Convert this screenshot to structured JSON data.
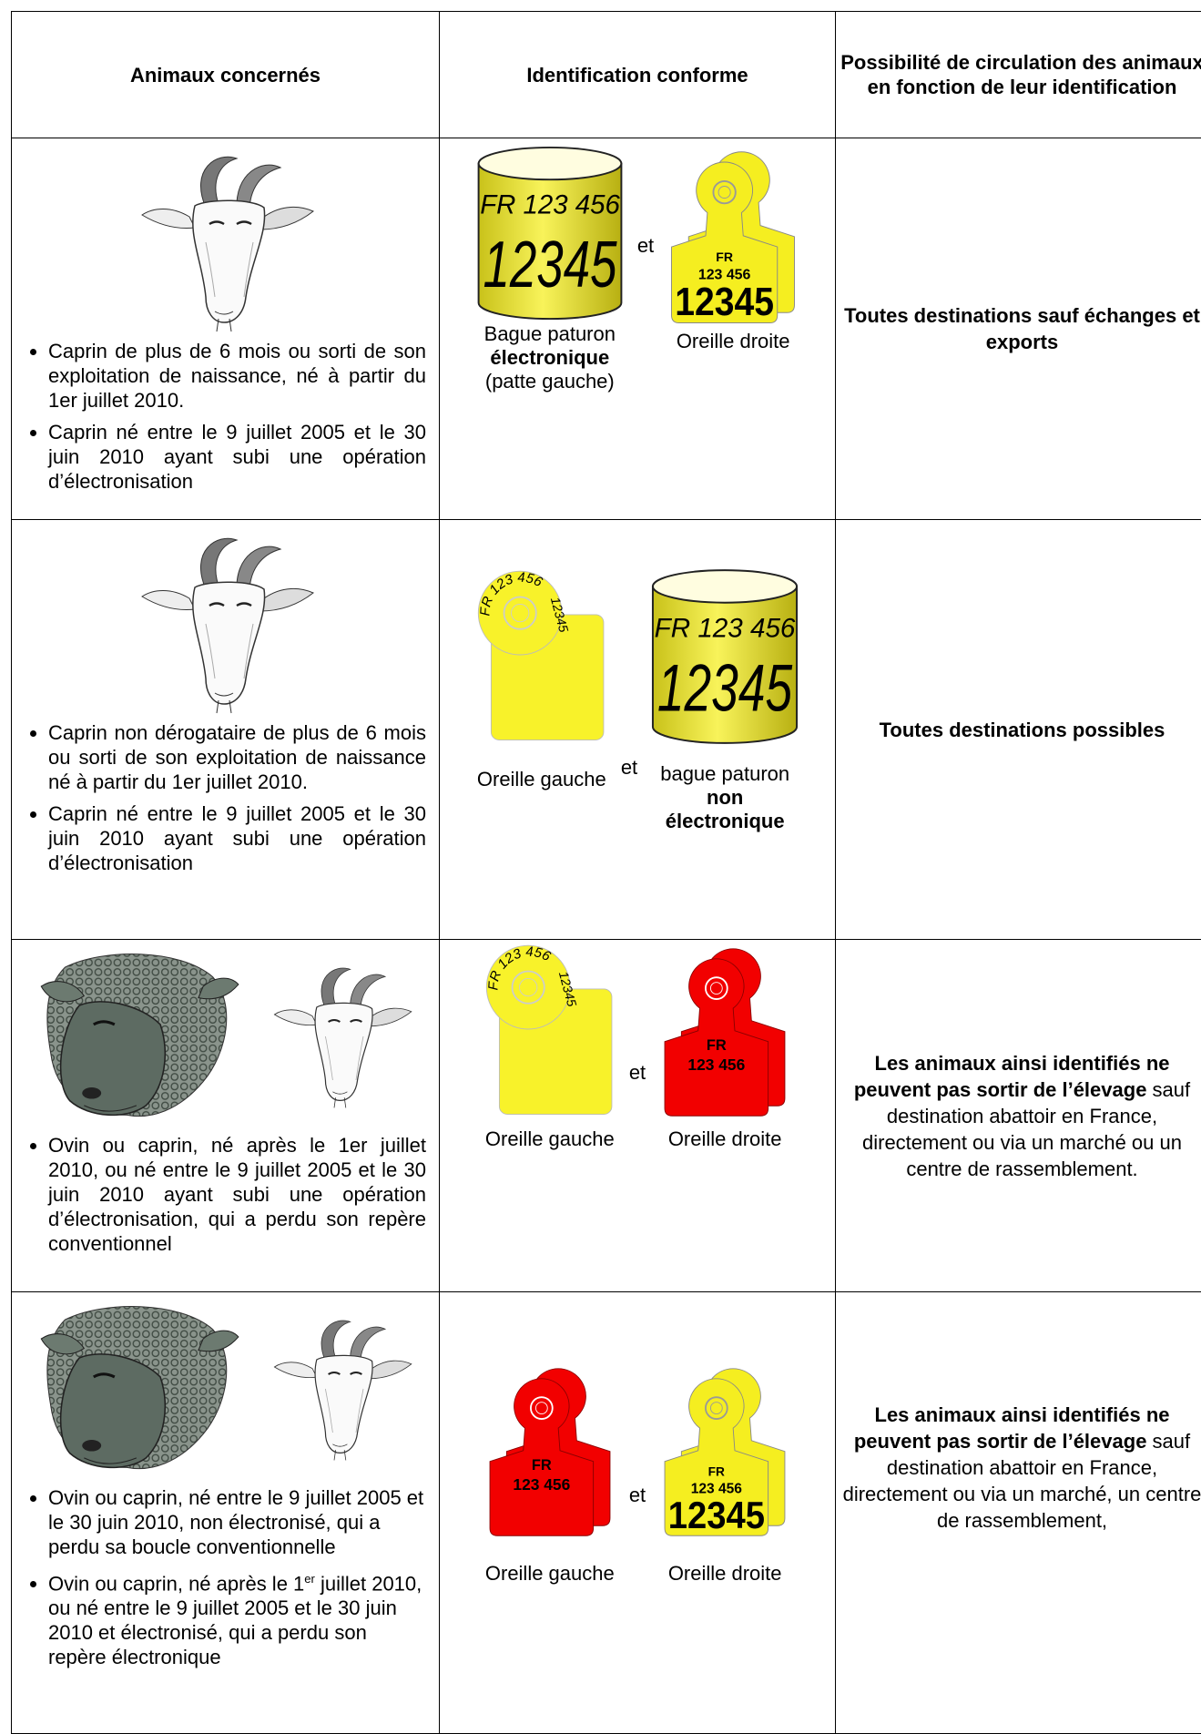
{
  "table": {
    "headers": [
      "Animaux concernés",
      "Identification conforme",
      "Possibilité de circulation des animaux en fonction de leur identification"
    ],
    "rows": [
      {
        "bullets": [
          [
            "Caprin de plus de 6 mois ou sorti de son exploitation de naissance, né à partir du 1er juillet 2010."
          ],
          [
            "Caprin né entre le 9 juillet 2005 et le 30 juin 2010 ayant subi une opération d’électronisation"
          ]
        ],
        "identification": [
          {
            "tag": [
              "FR 123 456",
              "12345"
            ],
            "caption": [
              "Bague paturon",
              "électronique",
              "(patte gauche)"
            ]
          },
          {
            "tag": [
              "FR",
              "123 456",
              "12345"
            ],
            "caption": [
              "Oreille droite"
            ]
          }
        ],
        "connector": "et",
        "circulation": [
          "Toutes destinations sauf échanges et exports"
        ]
      },
      {
        "bullets": [
          [
            "Caprin non dérogataire de plus de 6 mois ou sorti de son exploitation de naissance né à partir du 1er juillet 2010."
          ],
          [
            "Caprin né entre le 9 juillet 2005 et le 30 juin 2010 ayant subi une opération d’électronisation"
          ]
        ],
        "identification": [
          {
            "tag": [
              "FR 123 456",
              "12345"
            ],
            "caption": [
              "Oreille gauche"
            ]
          },
          {
            "tag": [
              "FR 123 456",
              "12345"
            ],
            "caption": [
              "bague paturon",
              "non électronique"
            ]
          }
        ],
        "connector": "et",
        "circulation": [
          "Toutes destinations possibles"
        ]
      },
      {
        "bullets": [
          [
            "Ovin ou caprin, né après le 1er juillet 2010, ou né entre le 9 juillet 2005 et le 30 juin 2010 ayant subi une opération d’électronisation, qui a perdu son repère conventionnel"
          ]
        ],
        "identification": [
          {
            "tag": [
              "FR 123 456",
              "12345"
            ],
            "caption": [
              "Oreille gauche"
            ]
          },
          {
            "tag": [
              "FR",
              "123 456"
            ],
            "caption": [
              "Oreille droite"
            ]
          }
        ],
        "connector": "et",
        "circulation": [
          "Les animaux ainsi identifiés ne peuvent pas sortir de l’élevage",
          " sauf destination abattoir en France, directement ou via un marché ou un centre de rassemblement."
        ]
      },
      {
        "bullets": [
          [
            "Ovin ou caprin, né entre le 9 juillet 2005 et le 30 juin 2010, non électronisé, qui a perdu sa boucle conventionnelle"
          ],
          [
            "Ovin ou caprin, né après le 1",
            "er",
            " juillet 2010, ou né entre le 9 juillet 2005 et le 30 juin 2010 et électronisé, qui a perdu son repère électronique"
          ]
        ],
        "identification": [
          {
            "tag": [
              "FR",
              "123 456"
            ],
            "caption": [
              "Oreille gauche"
            ]
          },
          {
            "tag": [
              "FR",
              "123 456",
              "12345"
            ],
            "caption": [
              "Oreille droite"
            ]
          }
        ],
        "connector": "et",
        "circulation": [
          "Les animaux ainsi identifiés ne peuvent pas sortir de l’élevage",
          " sauf destination abattoir en France, directement ou via un marché, un centre de rassemblement,"
        ]
      }
    ]
  }
}
